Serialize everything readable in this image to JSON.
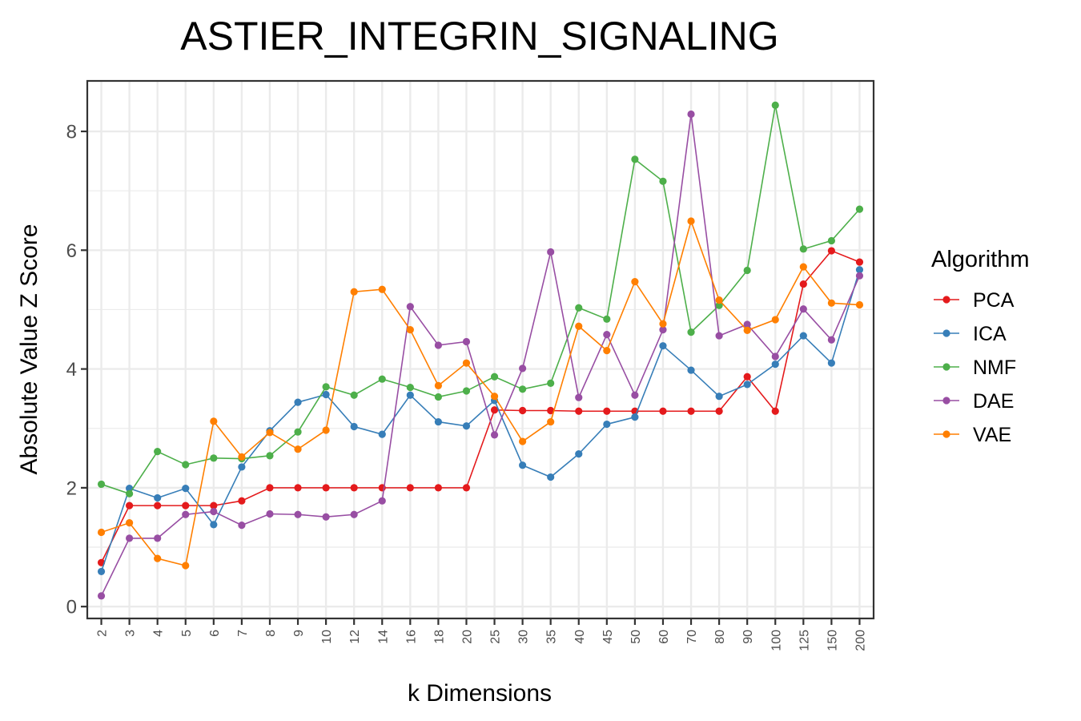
{
  "chart_data": {
    "type": "line",
    "title": "ASTIER_INTEGRIN_SIGNALING",
    "xlabel": "k Dimensions",
    "ylabel": "Absolute Value Z Score",
    "categories": [
      "2",
      "3",
      "4",
      "5",
      "6",
      "7",
      "8",
      "9",
      "10",
      "12",
      "14",
      "16",
      "18",
      "20",
      "25",
      "30",
      "35",
      "40",
      "45",
      "50",
      "60",
      "70",
      "80",
      "90",
      "100",
      "125",
      "150",
      "200"
    ],
    "ylim": [
      -0.2,
      8.85
    ],
    "yticks": [
      0,
      2,
      4,
      6,
      8
    ],
    "grid": true,
    "legend": {
      "title": "Algorithm",
      "position": "right"
    },
    "series": [
      {
        "name": "PCA",
        "color": "#e41a1c",
        "values": [
          0.74,
          1.7,
          1.7,
          1.7,
          1.7,
          1.78,
          2.0,
          2.0,
          2.0,
          2.0,
          2.0,
          2.0,
          2.0,
          2.0,
          3.31,
          3.3,
          3.3,
          3.29,
          3.29,
          3.29,
          3.29,
          3.29,
          3.29,
          3.87,
          3.29,
          5.43,
          5.99,
          5.8
        ]
      },
      {
        "name": "ICA",
        "color": "#377eb8",
        "values": [
          0.59,
          1.99,
          1.83,
          1.99,
          1.38,
          2.35,
          2.96,
          3.44,
          3.57,
          3.03,
          2.9,
          3.56,
          3.11,
          3.04,
          3.47,
          2.38,
          2.18,
          2.57,
          3.07,
          3.19,
          4.39,
          3.98,
          3.54,
          3.74,
          4.08,
          4.56,
          4.1,
          5.67
        ]
      },
      {
        "name": "NMF",
        "color": "#4daf4a",
        "values": [
          2.06,
          1.9,
          2.61,
          2.39,
          2.5,
          2.49,
          2.54,
          2.94,
          3.7,
          3.56,
          3.83,
          3.69,
          3.53,
          3.63,
          3.87,
          3.66,
          3.76,
          5.03,
          4.84,
          7.53,
          7.16,
          4.62,
          5.07,
          5.66,
          8.44,
          6.02,
          6.16,
          6.69
        ]
      },
      {
        "name": "DAE",
        "color": "#984ea3",
        "values": [
          0.18,
          1.15,
          1.15,
          1.55,
          1.6,
          1.37,
          1.56,
          1.55,
          1.51,
          1.55,
          1.78,
          5.05,
          4.4,
          4.46,
          2.89,
          4.01,
          5.97,
          3.52,
          4.58,
          3.56,
          4.66,
          8.29,
          4.56,
          4.75,
          4.21,
          5.01,
          4.49,
          5.57
        ]
      },
      {
        "name": "VAE",
        "color": "#ff7f00",
        "values": [
          1.25,
          1.41,
          0.81,
          0.69,
          3.12,
          2.52,
          2.93,
          2.65,
          2.97,
          5.3,
          5.34,
          4.66,
          3.72,
          4.1,
          3.54,
          2.78,
          3.11,
          4.72,
          4.31,
          5.47,
          4.76,
          6.49,
          5.16,
          4.65,
          4.83,
          5.72,
          5.11,
          5.08
        ]
      }
    ]
  }
}
